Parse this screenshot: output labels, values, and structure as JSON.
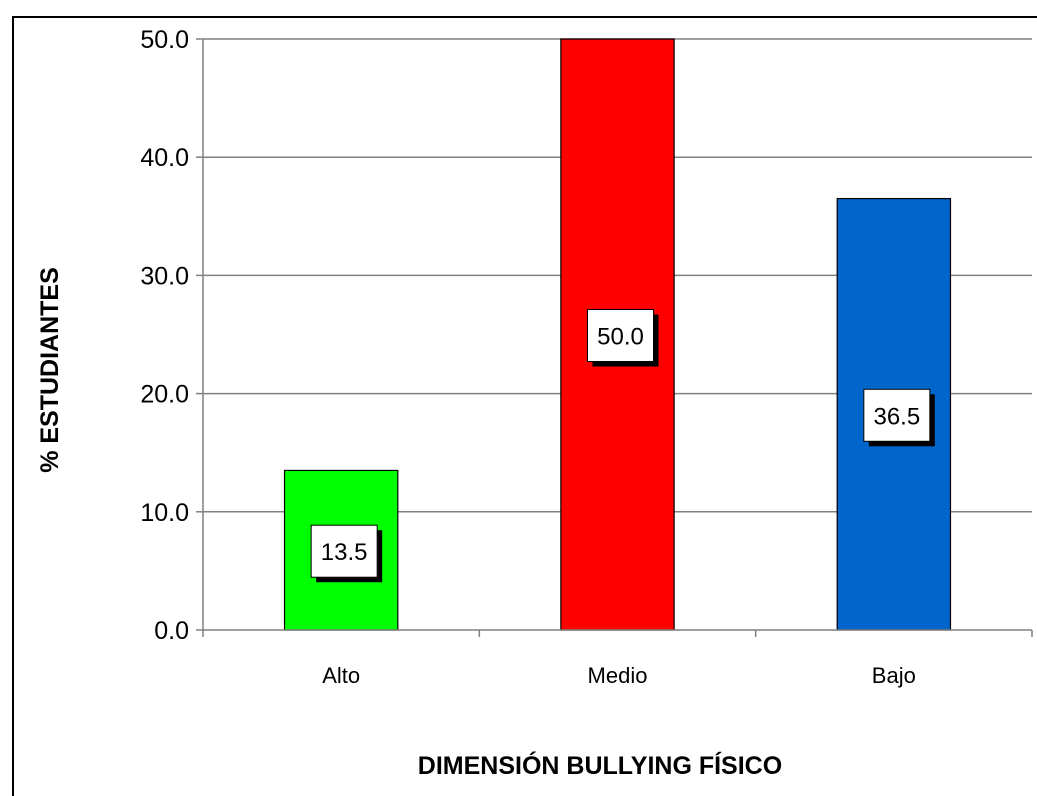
{
  "chart_data": {
    "type": "bar",
    "categories": [
      "Alto",
      "Medio",
      "Bajo"
    ],
    "values": [
      13.5,
      50.0,
      36.5
    ],
    "data_labels": [
      "13.5",
      "50.0",
      "36.5"
    ],
    "colors": [
      "#00ff00",
      "#ff0000",
      "#0066cc"
    ],
    "xlabel": "DIMENSIÓN BULLYING FÍSICO",
    "ylabel": "% ESTUDIANTES",
    "ylim": [
      0,
      50
    ],
    "yticks": [
      "0.0",
      "10.0",
      "20.0",
      "30.0",
      "40.0",
      "50.0"
    ],
    "grid": true,
    "legend": "none"
  }
}
